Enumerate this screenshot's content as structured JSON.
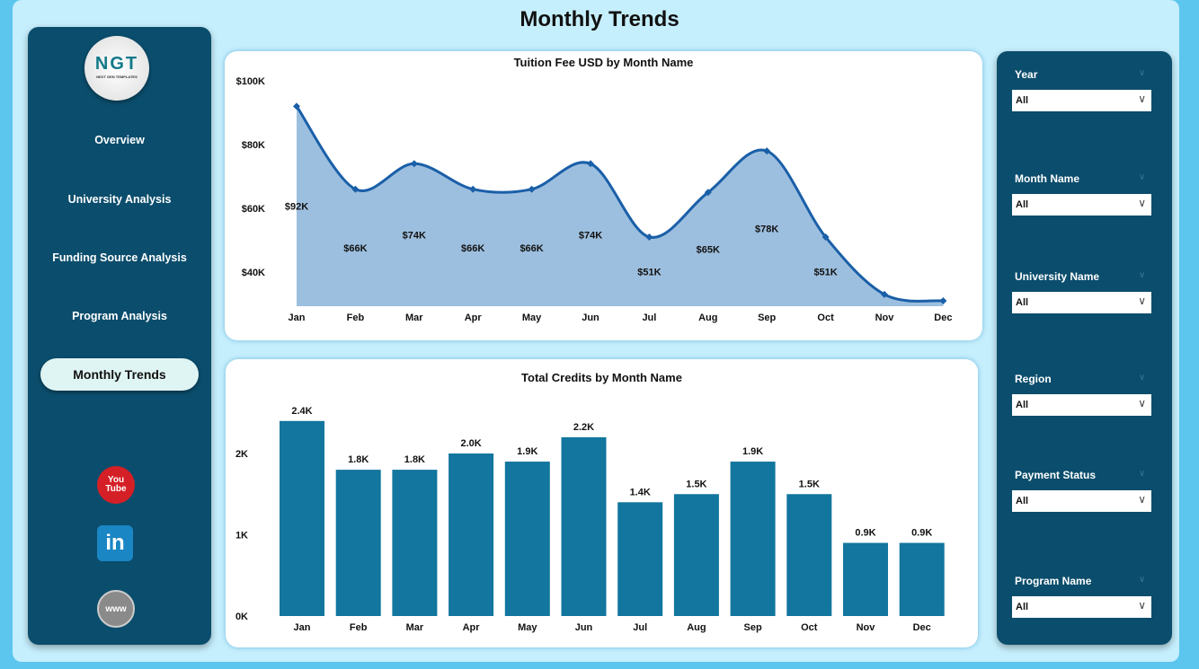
{
  "title": "Monthly Trends",
  "sidebar": {
    "logo_text": "NGT",
    "logo_subtext": "NEXT GEN TEMPLATES",
    "items": [
      {
        "label": "Overview"
      },
      {
        "label": "University Analysis"
      },
      {
        "label": "Funding Source Analysis"
      },
      {
        "label": "Program Analysis"
      },
      {
        "label": "Monthly Trends",
        "active": true
      }
    ],
    "social": [
      {
        "icon": "youtube-icon",
        "label": "You Tube"
      },
      {
        "icon": "linkedin-icon",
        "label": "in"
      },
      {
        "icon": "globe-icon",
        "label": "www"
      }
    ]
  },
  "filters": [
    {
      "label": "Year",
      "value": "All"
    },
    {
      "label": "Month Name",
      "value": "All"
    },
    {
      "label": "University Name",
      "value": "All"
    },
    {
      "label": "Region",
      "value": "All"
    },
    {
      "label": "Payment Status",
      "value": "All"
    },
    {
      "label": "Program Name",
      "value": "All"
    }
  ],
  "colors": {
    "panel": "#0b4d6c",
    "area": "#9dbfdf",
    "line": "#1a5fa8",
    "bar": "#12769e",
    "background": "#c6effd"
  },
  "chart_data": [
    {
      "type": "area",
      "title": "Tuition Fee USD by Month Name",
      "categories": [
        "Jan",
        "Feb",
        "Mar",
        "Apr",
        "May",
        "Jun",
        "Jul",
        "Aug",
        "Sep",
        "Oct",
        "Nov",
        "Dec"
      ],
      "values": [
        92000,
        66000,
        74000,
        66000,
        66000,
        74000,
        51000,
        65000,
        78000,
        51000,
        33000,
        31000
      ],
      "data_labels": [
        "$92K",
        "$66K",
        "$74K",
        "$66K",
        "$66K",
        "$74K",
        "$51K",
        "$65K",
        "$78K",
        "$51K",
        "",
        ""
      ],
      "yticks": [
        "$40K",
        "$60K",
        "$80K",
        "$100K"
      ],
      "ytick_values": [
        40000,
        60000,
        80000,
        100000
      ],
      "ylim": [
        29300,
        100000
      ],
      "grid": false
    },
    {
      "type": "bar",
      "title": "Total Credits by Month Name",
      "categories": [
        "Jan",
        "Feb",
        "Mar",
        "Apr",
        "May",
        "Jun",
        "Jul",
        "Aug",
        "Sep",
        "Oct",
        "Nov",
        "Dec"
      ],
      "values": [
        2400,
        1800,
        1800,
        2000,
        1900,
        2200,
        1400,
        1500,
        1900,
        1500,
        900,
        900
      ],
      "data_labels": [
        "2.4K",
        "1.8K",
        "1.8K",
        "2.0K",
        "1.9K",
        "2.2K",
        "1.4K",
        "1.5K",
        "1.9K",
        "1.5K",
        "0.9K",
        "0.9K"
      ],
      "yticks": [
        "0K",
        "1K",
        "2K"
      ],
      "ytick_values": [
        0,
        1000,
        2000
      ],
      "ylim": [
        0,
        2500
      ],
      "grid": false
    }
  ]
}
